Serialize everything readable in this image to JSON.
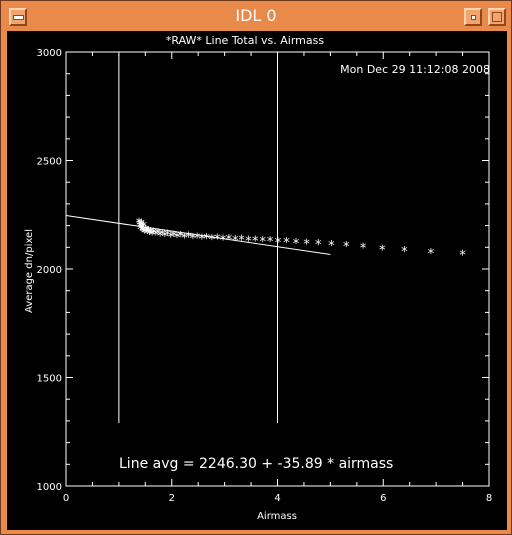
{
  "window": {
    "title": "IDL 0",
    "colors": {
      "frame": "#e98a4a",
      "plot_bg": "#000000",
      "ink": "#ffffff"
    }
  },
  "chart_data": {
    "type": "scatter",
    "title": "*RAW* Line Total vs. Airmass",
    "timestamp": "Mon Dec 29 11:12:08 2008",
    "xlabel": "Airmass",
    "ylabel": "Average dn/pixel",
    "xlim": [
      0,
      8
    ],
    "ylim": [
      1000,
      3000
    ],
    "xticks": [
      "0",
      "2",
      "4",
      "6",
      "8"
    ],
    "yticks": [
      "1000",
      "1500",
      "2000",
      "2500",
      "3000"
    ],
    "fit_label": "Line avg = 2246.30 + -35.89 * airmass",
    "fit": {
      "intercept": 2246.3,
      "slope": -35.89,
      "x_range": [
        0,
        5
      ]
    },
    "vlines": [
      {
        "x": 1.0,
        "y_range": [
          1290,
          2990
        ]
      },
      {
        "x": 4.0,
        "y_range": [
          1290,
          2990
        ]
      }
    ],
    "marker": "*",
    "points": [
      [
        1.38,
        2215
      ],
      [
        1.39,
        2205
      ],
      [
        1.4,
        2195
      ],
      [
        1.41,
        2185
      ],
      [
        1.42,
        2200
      ],
      [
        1.43,
        2210
      ],
      [
        1.44,
        2178
      ],
      [
        1.45,
        2190
      ],
      [
        1.46,
        2175
      ],
      [
        1.47,
        2198
      ],
      [
        1.48,
        2168
      ],
      [
        1.5,
        2183
      ],
      [
        1.52,
        2172
      ],
      [
        1.54,
        2165
      ],
      [
        1.56,
        2176
      ],
      [
        1.58,
        2162
      ],
      [
        1.6,
        2170
      ],
      [
        1.63,
        2160
      ],
      [
        1.66,
        2168
      ],
      [
        1.7,
        2158
      ],
      [
        1.74,
        2165
      ],
      [
        1.78,
        2155
      ],
      [
        1.82,
        2162
      ],
      [
        1.87,
        2152
      ],
      [
        1.92,
        2158
      ],
      [
        1.98,
        2150
      ],
      [
        2.04,
        2155
      ],
      [
        2.1,
        2148
      ],
      [
        2.17,
        2152
      ],
      [
        2.24,
        2145
      ],
      [
        2.32,
        2149
      ],
      [
        2.4,
        2143
      ],
      [
        2.48,
        2146
      ],
      [
        2.57,
        2140
      ],
      [
        2.66,
        2143
      ],
      [
        2.76,
        2138
      ],
      [
        2.86,
        2140
      ],
      [
        2.97,
        2136
      ],
      [
        3.08,
        2138
      ],
      [
        3.2,
        2134
      ],
      [
        3.32,
        2135
      ],
      [
        3.45,
        2131
      ],
      [
        3.58,
        2132
      ],
      [
        3.72,
        2128
      ],
      [
        3.86,
        2129
      ],
      [
        4.01,
        2125
      ],
      [
        4.17,
        2124
      ],
      [
        4.35,
        2120
      ],
      [
        4.55,
        2118
      ],
      [
        4.77,
        2115
      ],
      [
        5.02,
        2110
      ],
      [
        5.3,
        2105
      ],
      [
        5.62,
        2098
      ],
      [
        5.98,
        2090
      ],
      [
        6.4,
        2082
      ],
      [
        6.9,
        2074
      ],
      [
        7.5,
        2066
      ]
    ]
  }
}
